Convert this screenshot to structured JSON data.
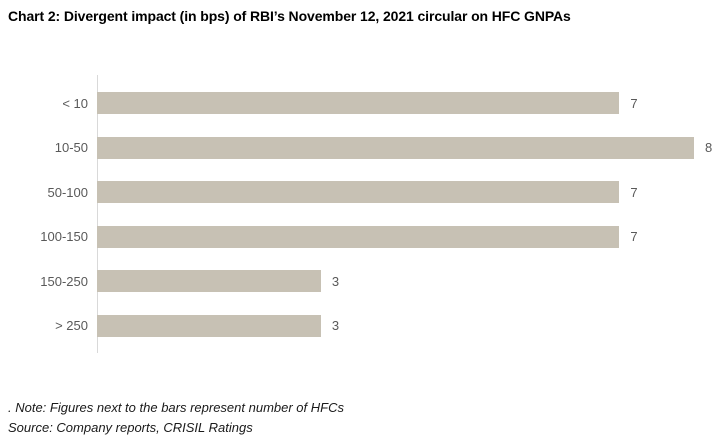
{
  "title": "Chart 2: Divergent impact (in bps) of RBI’s November 12, 2021 circular on HFC GNPAs",
  "chart_data": {
    "type": "bar",
    "orientation": "horizontal",
    "title": "Chart 2: Divergent impact (in bps) of RBI’s November 12, 2021 circular on HFC GNPAs",
    "categories": [
      "< 10",
      "10-50",
      "50-100",
      "100-150",
      "150-250",
      "> 250"
    ],
    "values": [
      7,
      8,
      7,
      7,
      3,
      3
    ],
    "xlabel": "",
    "ylabel": "",
    "xlim": [
      0,
      8
    ],
    "grid": false,
    "legend": "none",
    "value_labels_position": "end-of-bar",
    "bar_color": "#c7c1b4",
    "axis_color": "#d9d9d9",
    "label_color": "#595959"
  },
  "footnotes": {
    "note": ". Note: Figures next to the bars represent number of HFCs",
    "source": "Source: Company reports, CRISIL Ratings"
  }
}
